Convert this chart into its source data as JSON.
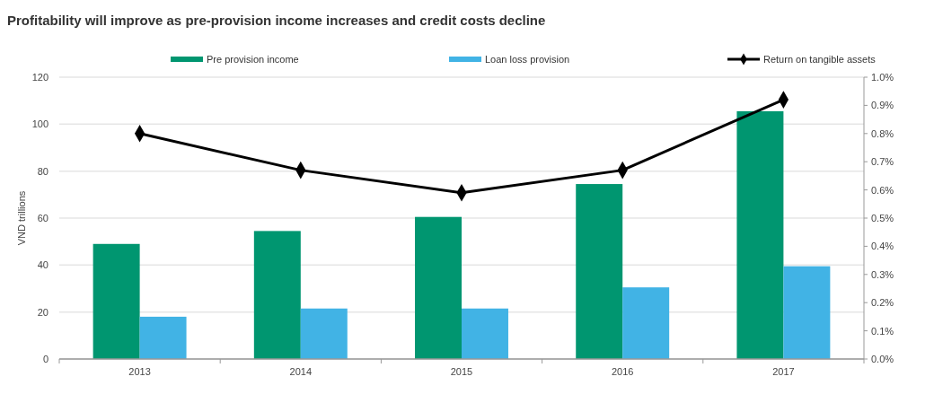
{
  "chart_data": {
    "type": "bar",
    "title": "Profitability will improve as pre-provision income increases and credit costs decline",
    "ylabel": "VND trillions",
    "categories": [
      "2013",
      "2014",
      "2015",
      "2016",
      "2017"
    ],
    "series": [
      {
        "name": "Pre provision income",
        "color": "#009670",
        "values": [
          49,
          54.5,
          60.5,
          74.5,
          105.5
        ]
      },
      {
        "name": "Loan loss provision",
        "color": "#41b3e5",
        "values": [
          18,
          21.5,
          21.5,
          30.5,
          39.5
        ]
      },
      {
        "name": "Return on tangible assets",
        "type": "line",
        "axis": "y2",
        "color": "#000000",
        "marker": "diamond",
        "values": [
          0.8,
          0.67,
          0.59,
          0.67,
          0.92
        ]
      }
    ],
    "ylim": [
      0,
      120
    ],
    "yticks": [
      0,
      20,
      40,
      60,
      80,
      100,
      120
    ],
    "y2lim": [
      0,
      1.0
    ],
    "y2ticks": [
      {
        "value": 0,
        "label": "0.0%"
      },
      {
        "value": 0.1,
        "label": "0.1%"
      },
      {
        "value": 0.2,
        "label": "0.2%"
      },
      {
        "value": 0.3,
        "label": "0.3%"
      },
      {
        "value": 0.4,
        "label": "0.4%"
      },
      {
        "value": 0.5,
        "label": "0.5%"
      },
      {
        "value": 0.6,
        "label": "0.6%"
      },
      {
        "value": 0.7,
        "label": "0.7%"
      },
      {
        "value": 0.8,
        "label": "0.8%"
      },
      {
        "value": 0.9,
        "label": "0.9%"
      },
      {
        "value": 1.0,
        "label": "1.0%"
      }
    ],
    "grid": "y",
    "legend": "top"
  }
}
